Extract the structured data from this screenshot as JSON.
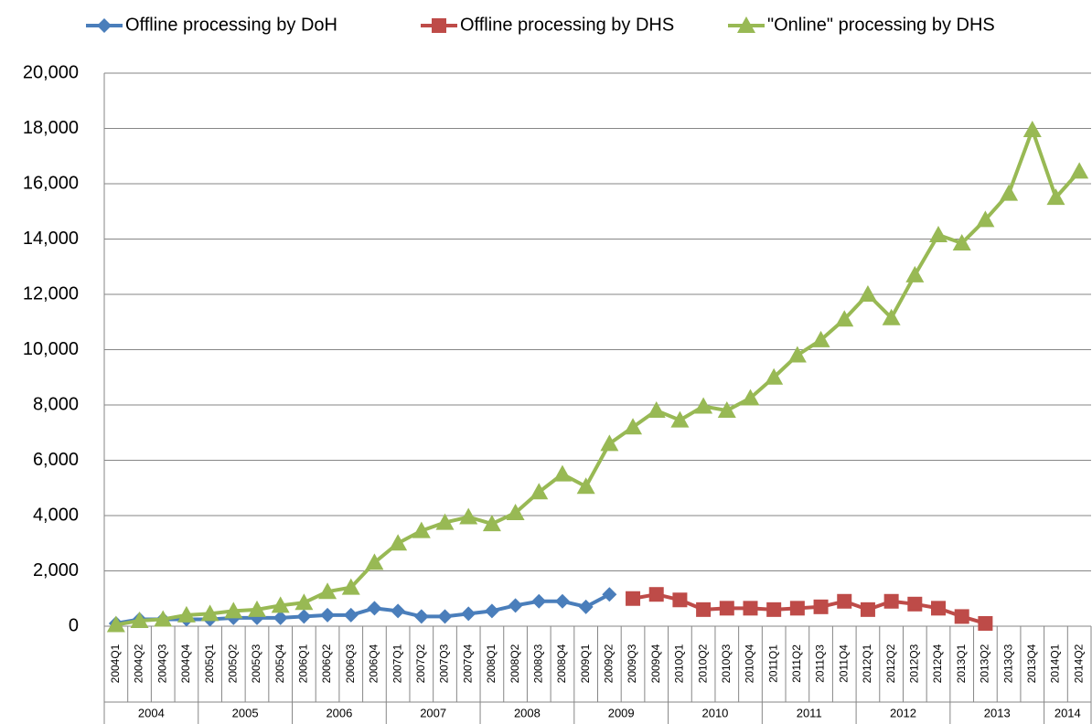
{
  "chart_data": {
    "type": "line",
    "categories": [
      "2004Q1",
      "2004Q2",
      "2004Q3",
      "2004Q4",
      "2005Q1",
      "2005Q2",
      "2005Q3",
      "2005Q4",
      "2006Q1",
      "2006Q2",
      "2006Q3",
      "2006Q4",
      "2007Q1",
      "2007Q2",
      "2007Q3",
      "2007Q4",
      "2008Q1",
      "2008Q2",
      "2008Q3",
      "2008Q4",
      "2009Q1",
      "2009Q2",
      "2009Q3",
      "2009Q4",
      "2010Q1",
      "2010Q2",
      "2010Q3",
      "2010Q4",
      "2011Q1",
      "2011Q2",
      "2011Q3",
      "2011Q4",
      "2012Q1",
      "2012Q2",
      "2012Q3",
      "2012Q4",
      "2013Q1",
      "2013Q2",
      "2013Q3",
      "2013Q4",
      "2014Q1",
      "2014Q2"
    ],
    "groups": [
      "2004",
      "2005",
      "2006",
      "2007",
      "2008",
      "2009",
      "2010",
      "2011",
      "2012",
      "2013",
      "2014"
    ],
    "series": [
      {
        "name": "Offline processing by DoH",
        "color": "#4a7ebb",
        "marker": "diamond",
        "values": [
          100,
          250,
          250,
          250,
          250,
          300,
          300,
          300,
          350,
          400,
          400,
          650,
          550,
          350,
          350,
          450,
          550,
          750,
          900,
          900,
          700,
          1150,
          null,
          null,
          null,
          null,
          null,
          null,
          null,
          null,
          null,
          null,
          null,
          null,
          null,
          null,
          null,
          null,
          null,
          null,
          null,
          null
        ]
      },
      {
        "name": "Offline processing by DHS",
        "color": "#be4b48",
        "marker": "square",
        "values": [
          null,
          null,
          null,
          null,
          null,
          null,
          null,
          null,
          null,
          null,
          null,
          null,
          null,
          null,
          null,
          null,
          null,
          null,
          null,
          null,
          null,
          null,
          1000,
          1150,
          950,
          600,
          650,
          650,
          600,
          650,
          700,
          900,
          600,
          900,
          800,
          650,
          350,
          100,
          null,
          null,
          null,
          null
        ]
      },
      {
        "name": "\"Online\" processing by DHS",
        "color": "#98b954",
        "marker": "triangle",
        "values": [
          50,
          200,
          250,
          400,
          450,
          550,
          600,
          750,
          850,
          1250,
          1400,
          2300,
          3000,
          3450,
          3750,
          3950,
          3700,
          4100,
          4850,
          5500,
          5050,
          6600,
          7200,
          7800,
          7450,
          7950,
          7800,
          8250,
          9000,
          9800,
          10350,
          11100,
          12000,
          11150,
          12700,
          14150,
          13850,
          14700,
          15650,
          17950,
          15500,
          16450
        ]
      }
    ],
    "ylim": [
      0,
      20000
    ],
    "yticks": [
      0,
      {
        "value": 2000,
        "label": "2,000"
      },
      {
        "value": 4000,
        "label": "4,000"
      },
      {
        "value": 6000,
        "label": "6,000"
      },
      {
        "value": 8000,
        "label": "8,000"
      },
      {
        "value": 10000,
        "label": "10,000"
      },
      {
        "value": 12000,
        "label": "12,000"
      },
      {
        "value": 14000,
        "label": "14,000"
      },
      {
        "value": 16000,
        "label": "16,000"
      },
      {
        "value": 18000,
        "label": "18,000"
      },
      {
        "value": 20000,
        "label": "20,000"
      }
    ],
    "grid": true,
    "legend": "top"
  }
}
